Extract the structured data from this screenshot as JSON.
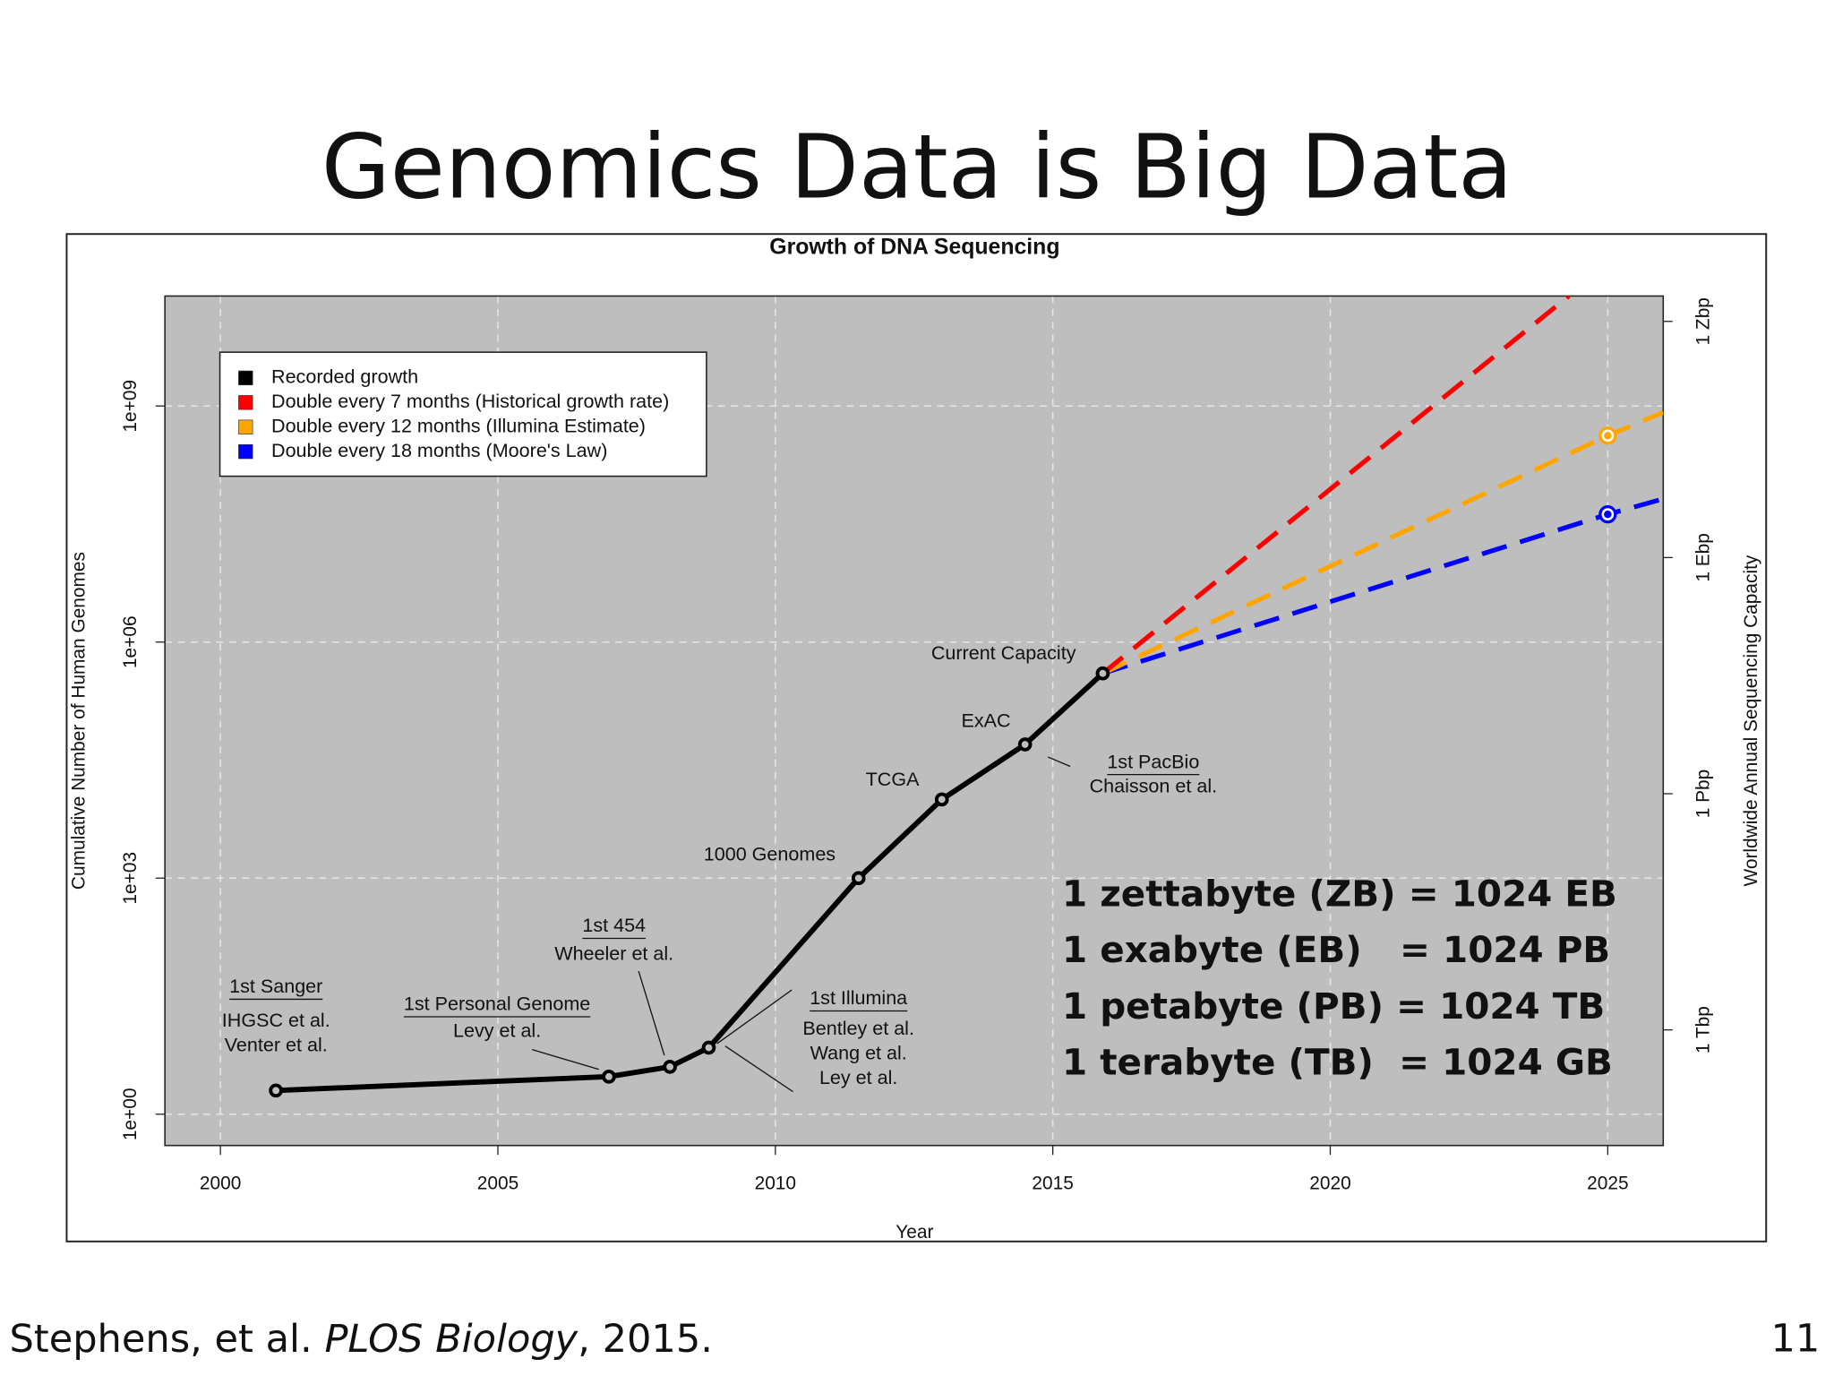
{
  "title": "Genomics Data is Big Data",
  "citation": {
    "authors": "Stephens, et al. ",
    "journal": "PLOS Biology",
    "year": ", 2015."
  },
  "page_number": "11",
  "chart_data": {
    "type": "line",
    "title": "Growth of DNA Sequencing",
    "x_label": "Year",
    "y_label": "Cumulative Number of Human Genomes",
    "y2_label": "Worldwide Annual Sequencing Capacity",
    "xlim": [
      1999,
      2026
    ],
    "xticks": [
      2000,
      2005,
      2010,
      2015,
      2020,
      2025
    ],
    "ylim": [
      0.4,
      25000000000
    ],
    "yticks": [
      {
        "value": 1,
        "label": "1e+00"
      },
      {
        "value": 1000,
        "label": "1e+03"
      },
      {
        "value": 1000000,
        "label": "1e+06"
      },
      {
        "value": 1000000000,
        "label": "1e+09"
      }
    ],
    "y_scale": "log",
    "y2lim": [
      34000000000,
      2100000000000000000000
    ],
    "y2ticks": [
      {
        "value": 1000000000000,
        "label": "1 Tbp"
      },
      {
        "value": 1000000000000000,
        "label": "1 Pbp"
      },
      {
        "value": 1000000000000000000,
        "label": "1 Ebp"
      },
      {
        "value": 1000000000000000000000,
        "label": "1 Zbp"
      }
    ],
    "y2_scale": "log",
    "grid": true,
    "legend": "top-left",
    "series": [
      {
        "name": "Recorded growth",
        "color": "#000000",
        "linestyle": "solid",
        "x": [
          2001,
          2007,
          2008.1,
          2008.8,
          2011.5,
          2013,
          2014.5,
          2015.9
        ],
        "values": [
          2,
          3,
          4,
          7,
          1000,
          10000,
          50000,
          400000
        ],
        "markers": [
          true,
          true,
          true,
          true,
          true,
          true,
          true,
          true
        ]
      },
      {
        "name": "Double every 7 months (Historical growth rate)",
        "color": "#ff0000",
        "linestyle": "dashed",
        "x": [
          2015.9,
          2024.3
        ],
        "values": [
          400000,
          25000000000
        ],
        "markers": [
          false,
          false
        ]
      },
      {
        "name": "Double every 12 months (Illumina Estimate)",
        "color": "#ffa500",
        "linestyle": "dashed",
        "x": [
          2015.9,
          2025,
          2026
        ],
        "values": [
          400000,
          420000000,
          830000000
        ],
        "markers": [
          false,
          true,
          false
        ]
      },
      {
        "name": "Double every 18 months (Moore's Law)",
        "color": "#0000ff",
        "linestyle": "dashed",
        "x": [
          2015.9,
          2025,
          2026
        ],
        "values": [
          400000,
          42000000,
          66000000
        ],
        "markers": [
          false,
          true,
          false
        ]
      }
    ],
    "annotations": [
      {
        "title": "1st Sanger",
        "underline": true,
        "lines": [
          "IHGSC et al.",
          "Venter et al."
        ]
      },
      {
        "title": "1st Personal Genome",
        "underline": true,
        "lines": [
          "Levy et al."
        ]
      },
      {
        "title": "1st 454",
        "underline": true,
        "lines": [
          "Wheeler et al."
        ]
      },
      {
        "title": "1st Illumina",
        "underline": true,
        "lines": [
          "Bentley et al.",
          "Wang et al.",
          "Ley et al."
        ]
      },
      {
        "title": "1000 Genomes",
        "underline": false,
        "lines": []
      },
      {
        "title": "TCGA",
        "underline": false,
        "lines": []
      },
      {
        "title": "ExAC",
        "underline": false,
        "lines": []
      },
      {
        "title": "1st PacBio",
        "underline": true,
        "lines": [
          "Chaisson et al."
        ]
      },
      {
        "title": "Current Capacity",
        "underline": false,
        "lines": []
      }
    ],
    "units": [
      "1 zettabyte (ZB) = 1024 EB",
      "1 exabyte (EB)   = 1024 PB",
      "1 petabyte (PB) = 1024 TB",
      "1 terabyte (TB)  = 1024 GB"
    ]
  }
}
